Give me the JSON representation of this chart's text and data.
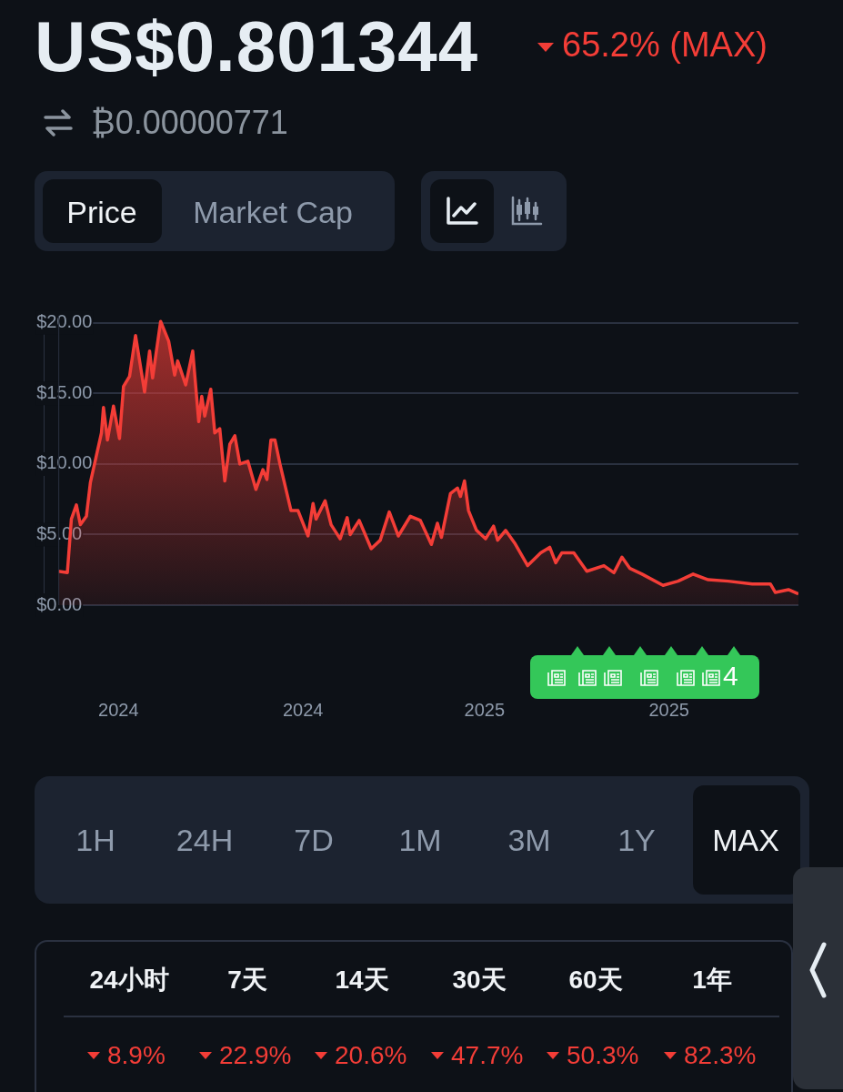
{
  "chart_data": {
    "type": "area",
    "title": "US$0.801344",
    "subtitle": "65.2% (MAX)",
    "annotations": [
      "₿0.00000771",
      "Price",
      "Market Cap",
      "1H",
      "24H",
      "7D",
      "1M",
      "3M",
      "1Y",
      "MAX",
      "24小时",
      "7天",
      "14天",
      "30天",
      "60天",
      "1年",
      "8.9%",
      "22.9%",
      "20.6%",
      "47.7%",
      "50.3%",
      "82.3%",
      "4"
    ],
    "x": [
      "2024-01-01",
      "2024-01-10",
      "2024-01-14",
      "2024-01-19",
      "2024-01-23",
      "2024-01-29",
      "2024-02-02",
      "2024-02-13",
      "2024-02-15",
      "2024-02-19",
      "2024-02-25",
      "2024-03-02",
      "2024-03-06",
      "2024-03-12",
      "2024-03-18",
      "2024-03-27",
      "2024-04-01",
      "2024-04-04",
      "2024-04-12",
      "2024-04-20",
      "2024-04-26",
      "2024-04-29",
      "2024-05-07",
      "2024-05-14",
      "2024-05-20",
      "2024-05-23",
      "2024-05-26",
      "2024-06-01",
      "2024-06-05",
      "2024-06-10",
      "2024-06-15",
      "2024-06-20",
      "2024-06-25",
      "2024-06-30",
      "2024-07-08",
      "2024-07-16",
      "2024-07-23",
      "2024-07-27",
      "2024-07-31",
      "2024-08-04",
      "2024-08-09",
      "2024-08-20",
      "2024-08-27",
      "2024-09-06",
      "2024-09-11",
      "2024-09-14",
      "2024-09-23",
      "2024-09-29",
      "2024-10-08",
      "2024-10-15",
      "2024-10-18",
      "2024-10-27",
      "2024-11-08",
      "2024-11-17",
      "2024-11-26",
      "2024-12-05",
      "2024-12-17",
      "2024-12-27",
      "2025-01-07",
      "2025-01-13",
      "2025-01-17",
      "2025-01-26",
      "2025-02-02",
      "2025-02-05",
      "2025-02-09",
      "2025-02-13",
      "2025-02-21",
      "2025-03-02",
      "2025-03-10",
      "2025-03-14",
      "2025-03-22",
      "2025-03-31",
      "2025-04-13",
      "2025-04-26",
      "2025-05-05",
      "2025-05-11",
      "2025-05-17",
      "2025-05-29",
      "2025-06-11",
      "2025-06-28",
      "2025-07-08",
      "2025-07-16",
      "2025-07-24",
      "2025-08-05",
      "2025-08-26",
      "2025-09-10",
      "2025-09-25",
      "2025-10-10",
      "2025-10-30",
      "2025-11-23",
      "2025-12-11",
      "2025-12-16",
      "2025-12-29",
      "2026-01-08"
    ],
    "series": [
      {
        "color": "#f33d37",
        "values": [
          2.4,
          2.3,
          6.1,
          7.1,
          5.7,
          6.3,
          8.7,
          12.2,
          14.0,
          11.7,
          14.1,
          11.8,
          15.5,
          16.2,
          19.1,
          15.1,
          18.0,
          16.1,
          20.1,
          18.7,
          16.3,
          17.3,
          15.6,
          18.0,
          13.0,
          14.8,
          13.4,
          15.3,
          12.2,
          12.5,
          8.8,
          11.4,
          12.0,
          10.0,
          10.2,
          8.2,
          9.6,
          8.9,
          11.7,
          11.7,
          10.0,
          6.7,
          6.7,
          4.9,
          7.2,
          6.1,
          7.4,
          5.7,
          4.7,
          6.2,
          5.0,
          6.0,
          4.0,
          4.6,
          6.6,
          4.9,
          6.3,
          6.0,
          4.3,
          5.8,
          4.8,
          7.9,
          8.3,
          7.7,
          8.8,
          6.7,
          5.3,
          4.7,
          5.6,
          4.6,
          5.3,
          4.4,
          2.8,
          3.7,
          4.1,
          3.0,
          3.7,
          3.7,
          2.4,
          2.8,
          2.3,
          3.4,
          2.6,
          2.2,
          1.4,
          1.7,
          2.2,
          1.8,
          1.7,
          1.5,
          1.5,
          0.9,
          1.1,
          0.8
        ]
      }
    ],
    "xlim": [
      "2024-01-01",
      "2026-01-08"
    ],
    "xticks": [
      {
        "value": "2024-03-01",
        "label": "2024"
      },
      {
        "value": "2024-09-01",
        "label": "2024"
      },
      {
        "value": "2025-03-01",
        "label": "2025"
      },
      {
        "value": "2025-09-01",
        "label": "2025"
      }
    ],
    "ylim": [
      0,
      20.5
    ],
    "yticks": [
      {
        "value": 0,
        "label": "$0.00"
      },
      {
        "value": 5,
        "label": "$5.00"
      },
      {
        "value": 10,
        "label": "$10.00"
      },
      {
        "value": 15,
        "label": "$15.00"
      },
      {
        "value": 20,
        "label": "$20.00"
      }
    ],
    "grid": "y",
    "marker": "none",
    "line_style": "solid",
    "legend": false
  }
}
